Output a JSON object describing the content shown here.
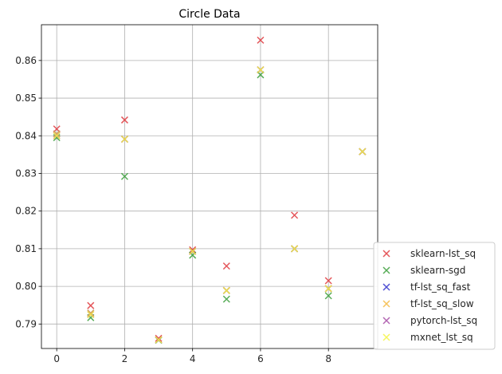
{
  "chart_data": {
    "type": "scatter",
    "title": "Circle Data",
    "xlabel": "",
    "ylabel": "",
    "xlim": [
      -0.45,
      9.45
    ],
    "ylim": [
      0.7835,
      0.8695
    ],
    "xticks": [
      0,
      2,
      4,
      6,
      8
    ],
    "xtick_labels": [
      "0",
      "2",
      "4",
      "6",
      "8"
    ],
    "yticks": [
      0.79,
      0.8,
      0.81,
      0.82,
      0.83,
      0.84,
      0.85,
      0.86
    ],
    "ytick_labels": [
      "0.79",
      "0.80",
      "0.81",
      "0.82",
      "0.83",
      "0.84",
      "0.85",
      "0.86"
    ],
    "grid": true,
    "legend_position": "right-bottom-outside",
    "marker": "x",
    "x": [
      0,
      1,
      2,
      3,
      4,
      5,
      6,
      7,
      8,
      9
    ],
    "series": [
      {
        "name": "sklearn-lst_sq",
        "color": "#e0393e",
        "values": [
          0.8418,
          0.7949,
          0.8442,
          0.7862,
          0.8097,
          0.8054,
          0.8654,
          0.8189,
          0.8015,
          0.8358
        ]
      },
      {
        "name": "sklearn-sgd",
        "color": "#3a9e3a",
        "values": [
          0.8395,
          0.7917,
          0.8292,
          0.7857,
          0.8083,
          0.7966,
          0.8562,
          0.81,
          0.7975,
          0.8358
        ]
      },
      {
        "name": "tf-lst_sq_fast",
        "color": "#3333cc",
        "values": [
          0.8405,
          0.7929,
          0.8391,
          0.7858,
          0.8093,
          0.7989,
          0.8575,
          0.81,
          0.7994,
          0.8358
        ]
      },
      {
        "name": "tf-lst_sq_slow",
        "color": "#f5b942",
        "values": [
          0.8405,
          0.7929,
          0.8391,
          0.7858,
          0.8093,
          0.7989,
          0.8575,
          0.81,
          0.7994,
          0.8358
        ]
      },
      {
        "name": "pytorch-lst_sq",
        "color": "#a64ca6",
        "values": [
          0.84,
          0.7925,
          0.8391,
          0.7858,
          0.8093,
          0.7989,
          0.8575,
          0.81,
          0.7994,
          0.8358
        ]
      },
      {
        "name": "mxnet_lst_sq",
        "color": "#f5f542",
        "values": [
          0.84,
          0.7925,
          0.8391,
          0.7858,
          0.8093,
          0.7989,
          0.8575,
          0.81,
          0.7994,
          0.8358
        ]
      }
    ]
  }
}
